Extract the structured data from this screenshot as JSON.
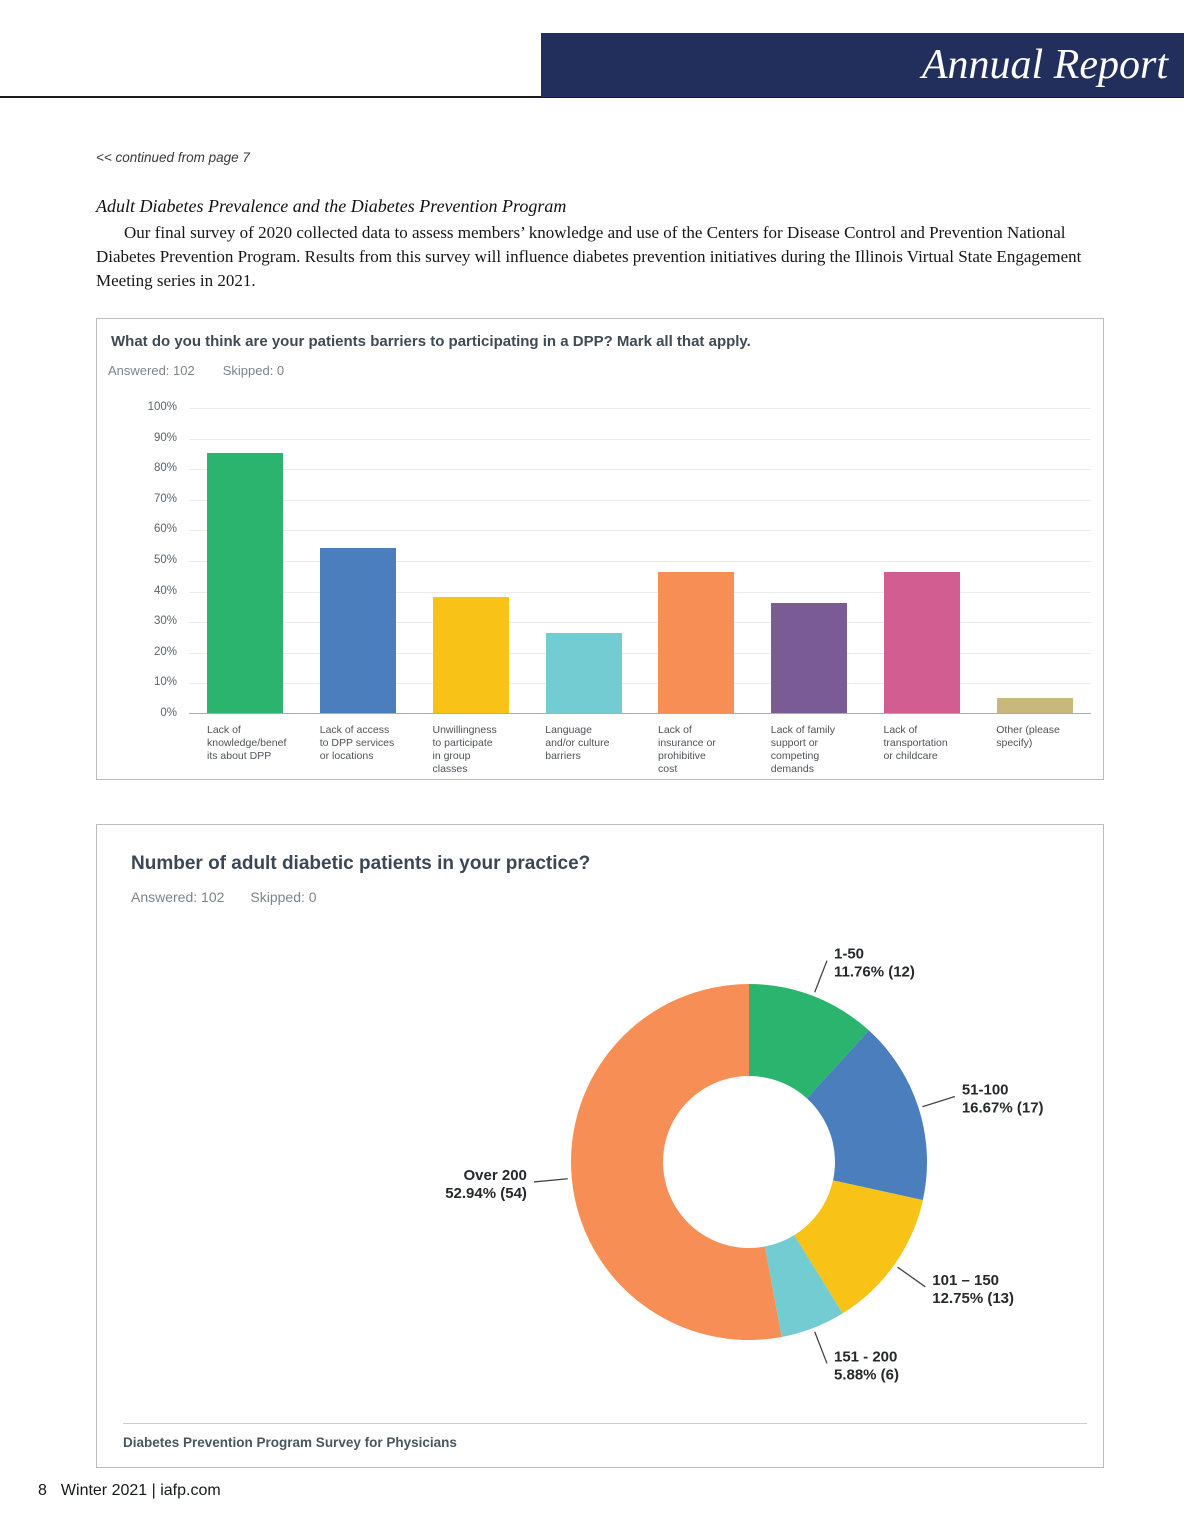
{
  "page": {
    "banner_title": "Annual Report",
    "banner_color": "#222f5c",
    "continued_note": "<< continued from page 7",
    "section_heading": "Adult Diabetes Prevalence and the Diabetes Prevention Program",
    "body_paragraph": "Our final survey of 2020 collected data to assess members’ knowledge and use of the Centers for Disease Control and Prevention National Diabetes Prevention Program. Results from this survey will influence diabetes prevention initiatives during the Illinois Virtual State Engagement Meeting series in 2021.",
    "page_number": "8",
    "footer_text": "Winter 2021 | iafp.com"
  },
  "chart_data": [
    {
      "type": "bar",
      "title": "What do you think are your patients barriers to participating in a DPP?  Mark all that apply.",
      "answered_label": "Answered: 102",
      "skipped_label": "Skipped: 0",
      "ylim": [
        0,
        100
      ],
      "grid": true,
      "y_ticks": [
        "100%",
        "90%",
        "80%",
        "70%",
        "60%",
        "50%",
        "40%",
        "30%",
        "20%",
        "10%",
        "0%"
      ],
      "categories": [
        "Lack of\nknowledge/benef\nits about DPP",
        "Lack of access\nto DPP services\nor locations",
        "Unwillingness\nto participate\nin group\nclasses",
        "Language\nand/or culture\nbarriers",
        "Lack of\ninsurance or\nprohibitive\ncost",
        "Lack of family\nsupport or\ncompeting\ndemands",
        "Lack of\ntransportation\nor childcare",
        "Other (please\nspecify)"
      ],
      "values": [
        85,
        54,
        38,
        26,
        46,
        36,
        46,
        5
      ],
      "colors": [
        "#2bb46e",
        "#4a7ebd",
        "#f8c216",
        "#72ccd2",
        "#f78e56",
        "#7a5b96",
        "#d25d90",
        "#c9b87e"
      ]
    },
    {
      "type": "donut",
      "title": "Number of adult diabetic patients in your practice?",
      "answered_label": "Answered: 102",
      "skipped_label": "Skipped: 0",
      "legend_position": "callout-labels",
      "slices": [
        {
          "label": "1-50",
          "value_label": "11.76% (12)",
          "pct": 11.76,
          "count": 12,
          "color": "#2bb46e"
        },
        {
          "label": "51-100",
          "value_label": "16.67% (17)",
          "pct": 16.67,
          "count": 17,
          "color": "#4a7ebd"
        },
        {
          "label": "101 – 150",
          "value_label": "12.75% (13)",
          "pct": 12.75,
          "count": 13,
          "color": "#f8c216"
        },
        {
          "label": "151 - 200",
          "value_label": "5.88% (6)",
          "pct": 5.88,
          "count": 6,
          "color": "#72ccd2"
        },
        {
          "label": "Over 200",
          "value_label": "52.94% (54)",
          "pct": 52.94,
          "count": 54,
          "color": "#f78e56"
        }
      ],
      "footer": "Diabetes Prevention Program Survey for Physicians"
    }
  ]
}
